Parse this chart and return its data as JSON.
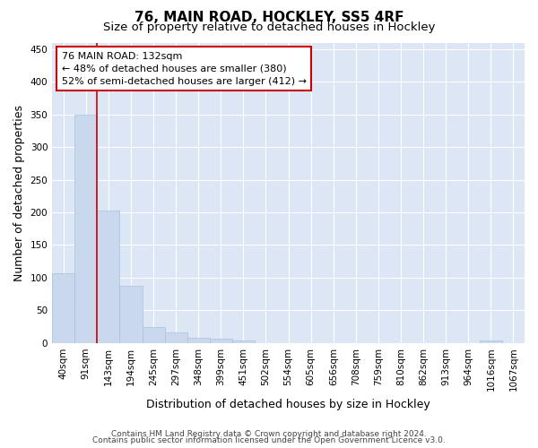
{
  "title": "76, MAIN ROAD, HOCKLEY, SS5 4RF",
  "subtitle": "Size of property relative to detached houses in Hockley",
  "xlabel": "Distribution of detached houses by size in Hockley",
  "ylabel": "Number of detached properties",
  "bar_labels": [
    "40sqm",
    "91sqm",
    "143sqm",
    "194sqm",
    "245sqm",
    "297sqm",
    "348sqm",
    "399sqm",
    "451sqm",
    "502sqm",
    "554sqm",
    "605sqm",
    "656sqm",
    "708sqm",
    "759sqm",
    "810sqm",
    "862sqm",
    "913sqm",
    "964sqm",
    "1016sqm",
    "1067sqm"
  ],
  "bar_values": [
    107,
    349,
    202,
    88,
    24,
    16,
    8,
    6,
    4,
    0,
    0,
    0,
    0,
    0,
    0,
    0,
    0,
    0,
    0,
    4,
    0
  ],
  "bar_color": "#c9d8ed",
  "bar_edgecolor": "#a8c0de",
  "vline_x_index": 2,
  "vline_color": "#cc0000",
  "annotation_line1": "76 MAIN ROAD: 132sqm",
  "annotation_line2": "← 48% of detached houses are smaller (380)",
  "annotation_line3": "52% of semi-detached houses are larger (412) →",
  "annotation_box_facecolor": "#ffffff",
  "annotation_box_edgecolor": "#cc0000",
  "ylim": [
    0,
    460
  ],
  "yticks": [
    0,
    50,
    100,
    150,
    200,
    250,
    300,
    350,
    400,
    450
  ],
  "fig_facecolor": "#ffffff",
  "plot_facecolor": "#dce6f5",
  "grid_color": "#ffffff",
  "footer_line1": "Contains HM Land Registry data © Crown copyright and database right 2024.",
  "footer_line2": "Contains public sector information licensed under the Open Government Licence v3.0.",
  "title_fontsize": 11,
  "subtitle_fontsize": 9.5,
  "ylabel_fontsize": 9,
  "xlabel_fontsize": 9,
  "tick_fontsize": 7.5,
  "annotation_fontsize": 8,
  "footer_fontsize": 6.5
}
